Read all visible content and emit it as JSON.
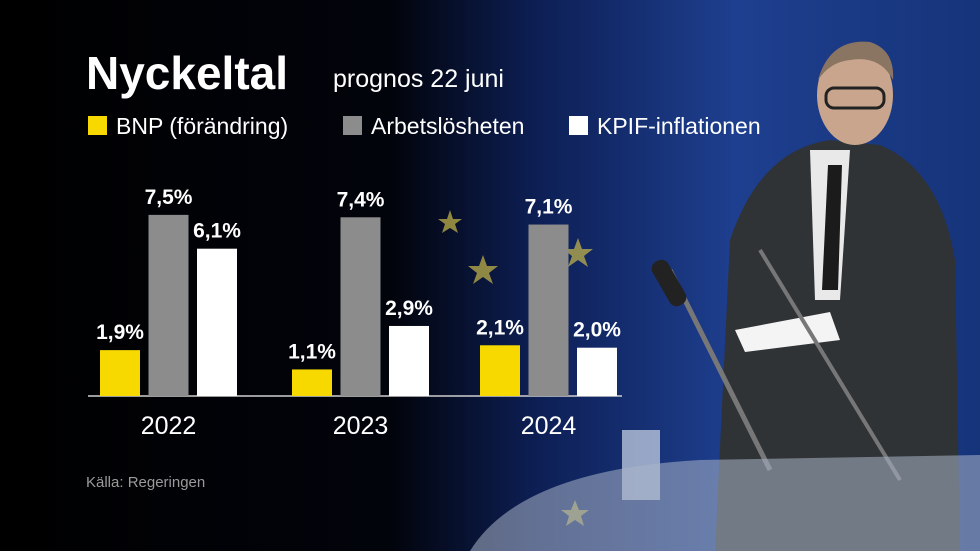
{
  "chart_data": {
    "type": "bar",
    "title": "Nyckeltal",
    "subtitle": "prognos 22 juni",
    "source": "Källa: Regeringen",
    "categories": [
      "2022",
      "2023",
      "2024"
    ],
    "series": [
      {
        "name": "BNP (förändring)",
        "color": "#f7d900",
        "values": [
          1.9,
          1.1,
          2.1
        ],
        "value_labels": [
          "1,9%",
          "1,1%",
          "2,1%"
        ]
      },
      {
        "name": "Arbetslösheten",
        "color": "#8c8c8c",
        "values": [
          7.5,
          7.4,
          7.1
        ],
        "value_labels": [
          "7,5%",
          "7,4%",
          "7,1%"
        ]
      },
      {
        "name": "KPIF-inflationen",
        "color": "#ffffff",
        "values": [
          6.1,
          2.9,
          2.0
        ],
        "value_labels": [
          "6,1%",
          "2,9%",
          "2,0%"
        ]
      }
    ]
  }
}
